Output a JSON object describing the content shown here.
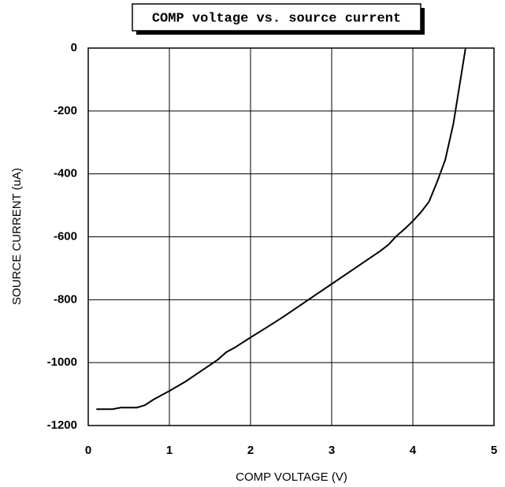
{
  "chart_data": {
    "type": "line",
    "title": "COMP voltage vs. source current",
    "x_label": "COMP VOLTAGE (V)",
    "y_label": "SOURCE CURRENT (uA)",
    "x": [
      0.1,
      0.3,
      0.4,
      0.6,
      0.7,
      0.8,
      1.0,
      1.2,
      1.4,
      1.6,
      1.7,
      1.8,
      2.0,
      2.2,
      2.4,
      2.6,
      2.8,
      3.0,
      3.2,
      3.4,
      3.6,
      3.7,
      3.8,
      3.9,
      4.0,
      4.1,
      4.2,
      4.3,
      4.4,
      4.5,
      4.55,
      4.6,
      4.65
    ],
    "series": [
      {
        "name": "source current",
        "color": "#000000",
        "values": [
          -1148,
          -1148,
          -1143,
          -1143,
          -1135,
          -1118,
          -1090,
          -1060,
          -1025,
          -990,
          -967,
          -953,
          -920,
          -888,
          -855,
          -820,
          -785,
          -750,
          -715,
          -680,
          -645,
          -625,
          -597,
          -575,
          -550,
          -522,
          -488,
          -425,
          -355,
          -240,
          -160,
          -80,
          0
        ]
      }
    ],
    "xlim": [
      0,
      5
    ],
    "xticks": [
      0,
      1,
      2,
      3,
      4,
      5
    ],
    "ylim": [
      -1200,
      0
    ],
    "yticks": [
      0,
      -200,
      -400,
      -600,
      -800,
      -1000,
      -1200
    ],
    "grid": true
  }
}
